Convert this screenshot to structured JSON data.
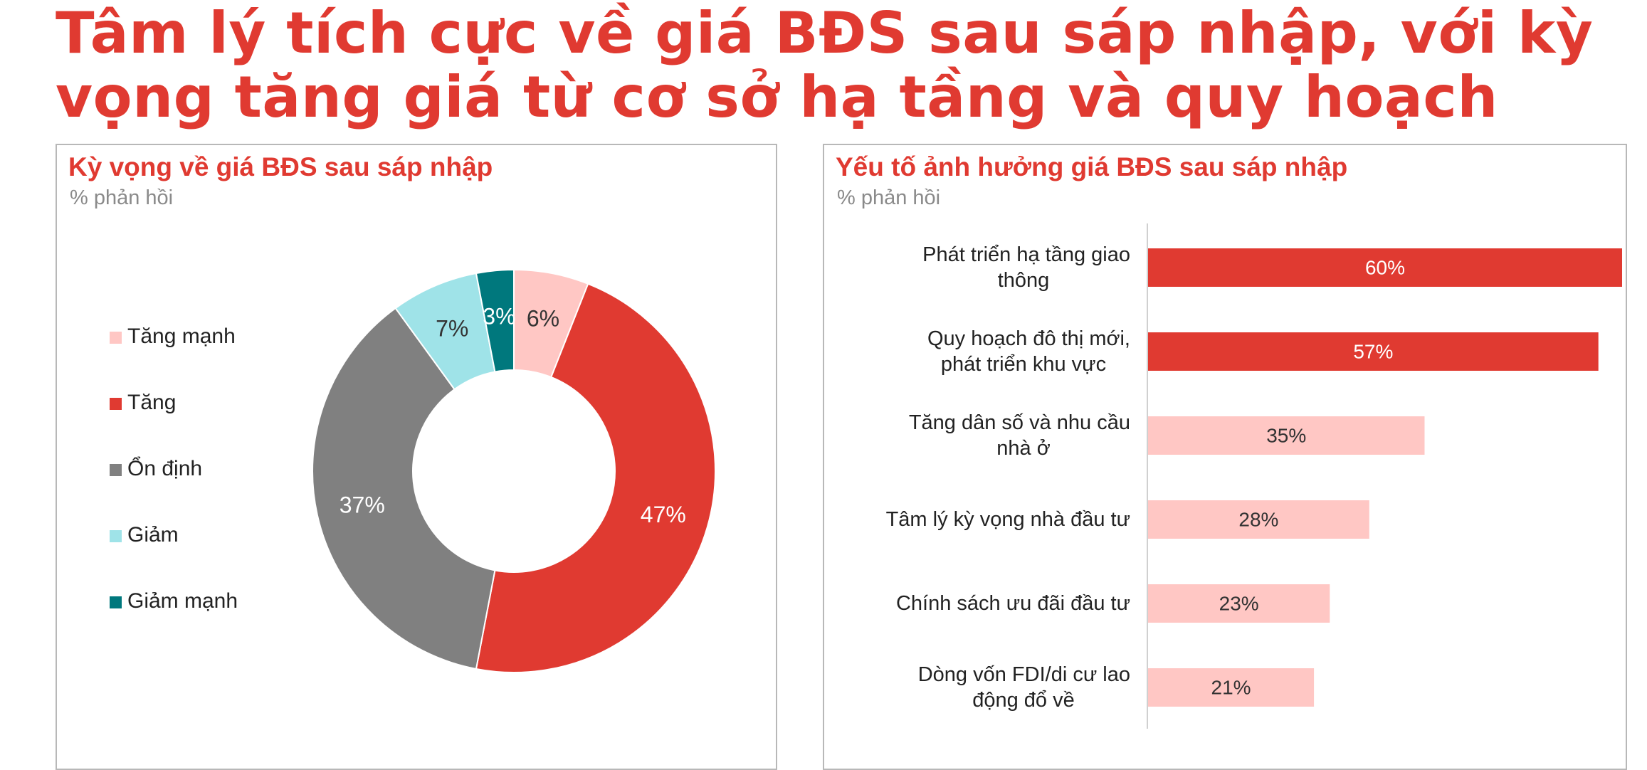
{
  "title": "Tâm lý tích cực về giá BĐS sau sáp nhập, với kỳ vọng tăng giá từ cơ sở hạ tầng và quy hoạch",
  "left_panel": {
    "title": "Kỳ vọng về giá BĐS sau sáp nhập",
    "subtitle": "% phản hồi"
  },
  "right_panel": {
    "title": "Yếu tố ảnh hưởng giá BĐS sau sáp nhập",
    "subtitle": "% phản hồi"
  },
  "colors": {
    "title_red": "#e03a31",
    "light_pink": "#ffc7c4",
    "red": "#e03a31",
    "gray": "#808080",
    "light_cyan": "#9fe3e8",
    "teal": "#00787d",
    "axis": "#d0d0d0"
  },
  "chart_data": [
    {
      "type": "pie",
      "donut": true,
      "title": "Kỳ vọng về giá BĐS sau sáp nhập",
      "subtitle": "% phản hồi",
      "legend_position": "left",
      "slices": [
        {
          "label": "Tăng mạnh",
          "value": 6,
          "display": "6%",
          "color": "#ffc7c4",
          "label_color": "#333333"
        },
        {
          "label": "Tăng",
          "value": 47,
          "display": "47%",
          "color": "#e03a31",
          "label_color": "#ffffff"
        },
        {
          "label": "Ổn định",
          "value": 37,
          "display": "37%",
          "color": "#808080",
          "label_color": "#ffffff"
        },
        {
          "label": "Giảm",
          "value": 7,
          "display": "7%",
          "color": "#9fe3e8",
          "label_color": "#333333"
        },
        {
          "label": "Giảm mạnh",
          "value": 3,
          "display": "3%",
          "color": "#00787d",
          "label_color": "#ffffff"
        }
      ]
    },
    {
      "type": "bar",
      "orientation": "horizontal",
      "title": "Yếu tố ảnh hưởng giá BĐS sau sáp nhập",
      "subtitle": "% phản hồi",
      "xlim": [
        0,
        60
      ],
      "grid": false,
      "categories": [
        [
          "Phát triển hạ tầng giao",
          "thông"
        ],
        [
          "Quy hoạch đô thị mới,",
          "phát triển khu vực"
        ],
        [
          "Tăng dân số và nhu cầu",
          "nhà ở"
        ],
        [
          "Tâm lý kỳ vọng nhà đầu tư"
        ],
        [
          "Chính sách ưu đãi đầu tư"
        ],
        [
          "Dòng vốn FDI/di cư lao",
          "động đổ về"
        ]
      ],
      "values": [
        60,
        57,
        35,
        28,
        23,
        21
      ],
      "labels": [
        "60%",
        "57%",
        "35%",
        "28%",
        "23%",
        "21%"
      ],
      "colors": [
        "#e03a31",
        "#e03a31",
        "#ffc7c4",
        "#ffc7c4",
        "#ffc7c4",
        "#ffc7c4"
      ],
      "label_colors": [
        "#ffffff",
        "#ffffff",
        "#333333",
        "#333333",
        "#333333",
        "#333333"
      ]
    }
  ]
}
